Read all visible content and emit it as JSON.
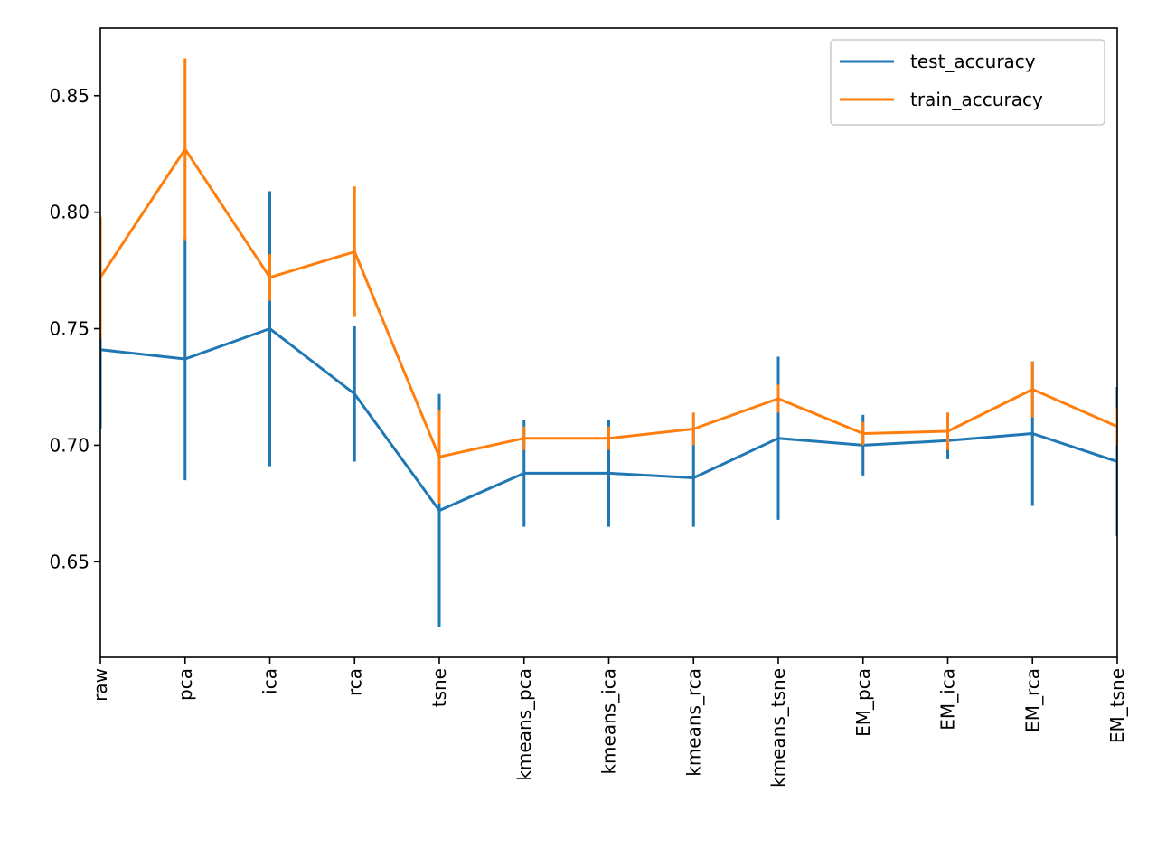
{
  "chart_data": {
    "type": "line",
    "title": "",
    "xlabel": "",
    "ylabel": "",
    "categories": [
      "raw",
      "pca",
      "ica",
      "rca",
      "tsne",
      "kmeans_pca",
      "kmeans_ica",
      "kmeans_rca",
      "kmeans_tsne",
      "EM_pca",
      "EM_ica",
      "EM_rca",
      "EM_tsne"
    ],
    "ylim": [
      0.609,
      0.879
    ],
    "yticks": [
      0.65,
      0.7,
      0.75,
      0.8,
      0.85
    ],
    "ytick_labels": [
      "0.65",
      "0.70",
      "0.75",
      "0.80",
      "0.85"
    ],
    "grid": false,
    "legend_position": "top-right",
    "series": [
      {
        "name": "test_accuracy",
        "color": "#1f77b4",
        "values": [
          0.741,
          0.737,
          0.75,
          0.722,
          0.672,
          0.688,
          0.688,
          0.686,
          0.703,
          0.7,
          0.702,
          0.705,
          0.693
        ],
        "errors": [
          0.034,
          0.052,
          0.059,
          0.029,
          0.05,
          0.023,
          0.023,
          0.021,
          0.035,
          0.013,
          0.008,
          0.031,
          0.032
        ]
      },
      {
        "name": "train_accuracy",
        "color": "#ff7f0e",
        "values": [
          0.772,
          0.827,
          0.772,
          0.783,
          0.695,
          0.703,
          0.703,
          0.707,
          0.72,
          0.705,
          0.706,
          0.724,
          0.708
        ],
        "errors": [
          0.026,
          0.039,
          0.01,
          0.028,
          0.02,
          0.005,
          0.005,
          0.007,
          0.006,
          0.005,
          0.008,
          0.012,
          0.008
        ]
      }
    ]
  }
}
